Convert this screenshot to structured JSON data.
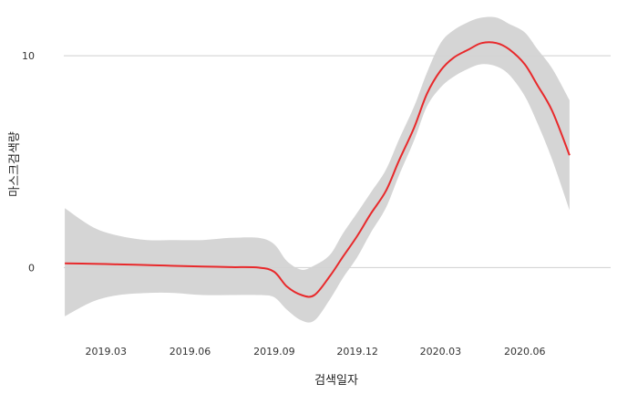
{
  "chart_data": {
    "type": "line",
    "title": "",
    "xlabel": "검색일자",
    "ylabel": "마스크검색량",
    "x_ticks": [
      "2019.03",
      "2019.06",
      "2019.09",
      "2019.12",
      "2020.03",
      "2020.06"
    ],
    "y_ticks": [
      0,
      10
    ],
    "ylim": [
      -3.3,
      12.2
    ],
    "grid": "horizontal",
    "legend": "none",
    "colors": {
      "line": "#e8292b",
      "band": "#d3d3d3",
      "grid": "#cfcfcf"
    },
    "series": [
      {
        "x": [
          "2019-01-15",
          "2019-02-15",
          "2019-03-15",
          "2019-04-15",
          "2019-05-15",
          "2019-06-15",
          "2019-07-15",
          "2019-08-15",
          "2019-09-01",
          "2019-09-15",
          "2019-10-01",
          "2019-10-15",
          "2019-11-01",
          "2019-11-15",
          "2019-12-01",
          "2019-12-15",
          "2020-01-01",
          "2020-01-15",
          "2020-02-01",
          "2020-02-15",
          "2020-03-01",
          "2020-03-15",
          "2020-04-01",
          "2020-04-15",
          "2020-05-01",
          "2020-05-15",
          "2020-06-01",
          "2020-06-15",
          "2020-07-01",
          "2020-07-20"
        ],
        "y": [
          0.2,
          0.18,
          0.15,
          0.12,
          0.08,
          0.05,
          0.02,
          0.0,
          -0.2,
          -0.9,
          -1.3,
          -1.3,
          -0.4,
          0.5,
          1.5,
          2.5,
          3.6,
          5.0,
          6.6,
          8.2,
          9.3,
          9.9,
          10.3,
          10.6,
          10.6,
          10.3,
          9.6,
          8.6,
          7.4,
          5.3
        ],
        "lower": [
          -2.3,
          -1.6,
          -1.3,
          -1.2,
          -1.2,
          -1.3,
          -1.3,
          -1.3,
          -1.4,
          -2.0,
          -2.5,
          -2.5,
          -1.5,
          -0.5,
          0.5,
          1.6,
          2.8,
          4.3,
          6.0,
          7.6,
          8.5,
          9.0,
          9.4,
          9.6,
          9.5,
          9.1,
          8.1,
          6.8,
          5.1,
          2.7
        ],
        "upper": [
          2.8,
          1.9,
          1.5,
          1.3,
          1.3,
          1.3,
          1.4,
          1.4,
          1.1,
          0.3,
          -0.1,
          0.1,
          0.6,
          1.6,
          2.6,
          3.5,
          4.6,
          6.0,
          7.6,
          9.2,
          10.6,
          11.2,
          11.6,
          11.8,
          11.8,
          11.5,
          11.1,
          10.3,
          9.4,
          7.9
        ]
      }
    ]
  }
}
